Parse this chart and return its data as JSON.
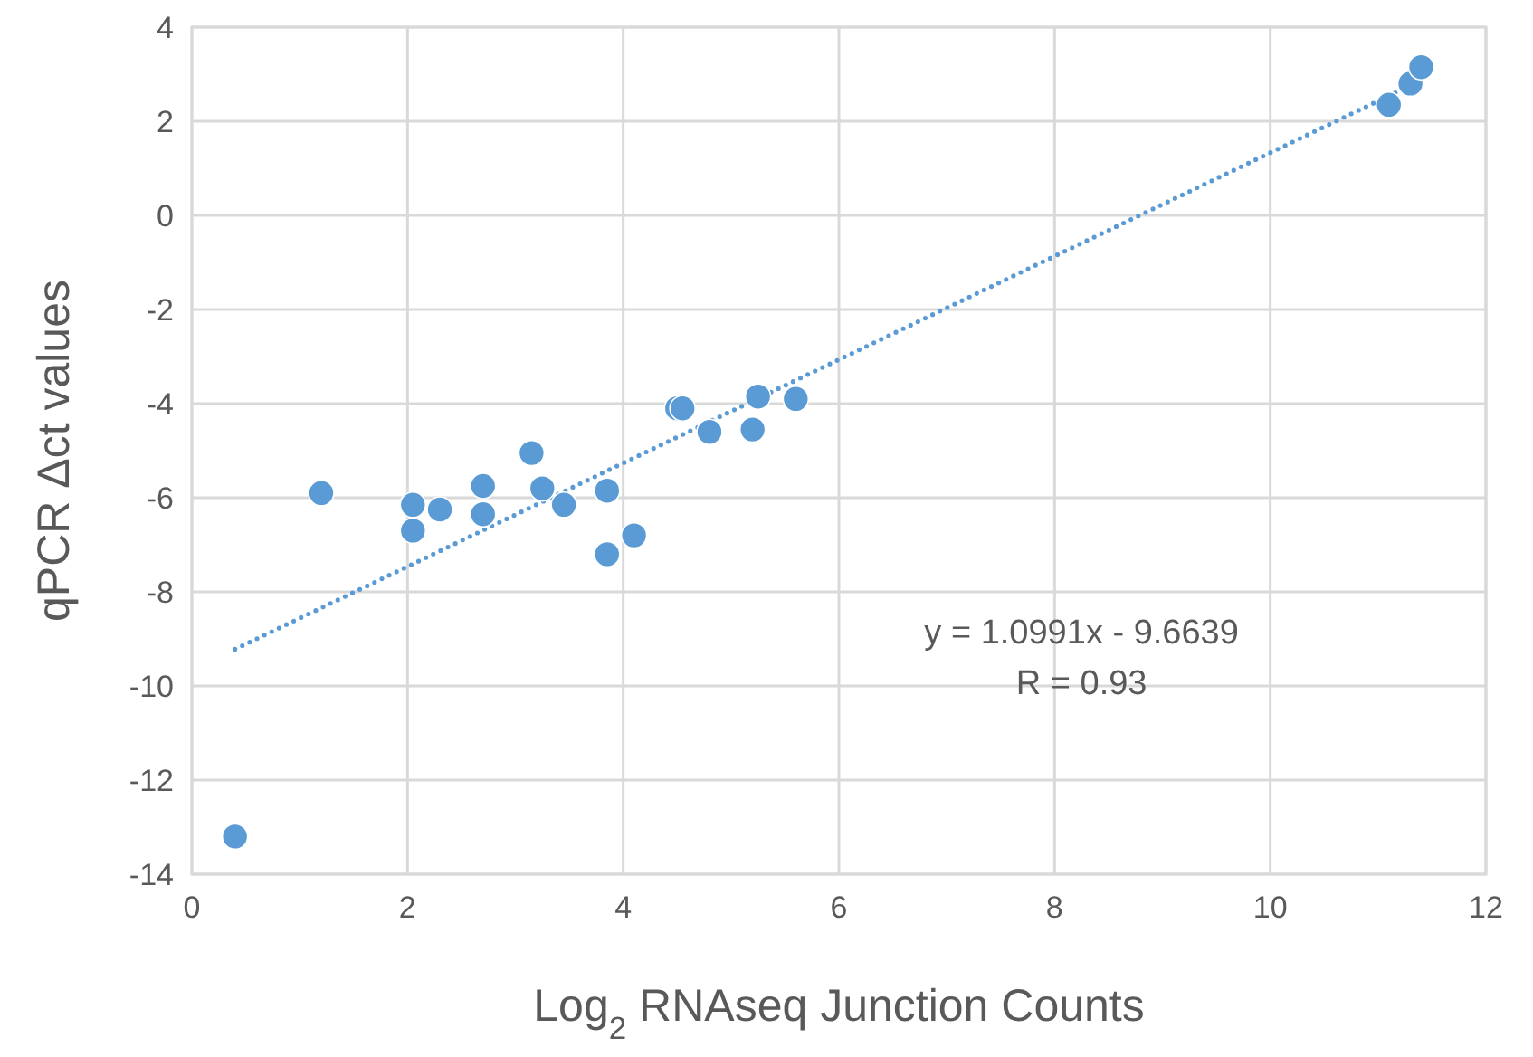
{
  "chart_data": {
    "type": "scatter",
    "xlabel": "Log$_{2}$ RNAseq Junction Counts",
    "ylabel": "qPCR Δct values",
    "xlim": [
      0,
      12
    ],
    "xticks": [
      0,
      2,
      4,
      6,
      8,
      10,
      12
    ],
    "ylim": [
      -14,
      4
    ],
    "yticks": [
      -14,
      -12,
      -10,
      -8,
      -6,
      -4,
      -2,
      0,
      2,
      4
    ],
    "grid": true,
    "series": [
      {
        "color": "#5b9bd5",
        "marker": "circle",
        "x": [
          0.4,
          1.2,
          2.05,
          2.05,
          2.3,
          2.7,
          2.7,
          3.15,
          3.25,
          3.45,
          3.85,
          3.85,
          4.1,
          4.5,
          4.55,
          4.8,
          5.2,
          5.25,
          5.6,
          11.1,
          11.3,
          11.4
        ],
        "values": [
          -13.2,
          -5.9,
          -6.15,
          -6.7,
          -6.25,
          -5.75,
          -6.35,
          -5.05,
          -5.8,
          -6.15,
          -5.85,
          -7.2,
          -6.8,
          -4.1,
          -4.1,
          -4.6,
          -4.55,
          -3.85,
          -3.9,
          2.35,
          2.8,
          3.15
        ]
      },
      {
        "type": "line",
        "color": "#5b9bd5",
        "line_style": "dotted",
        "x": [
          0.4,
          11.4
        ],
        "values": [
          -9.22,
          2.87
        ]
      }
    ],
    "annotations": [
      "y = 1.0991x - 9.6639",
      "R = 0.93"
    ]
  }
}
